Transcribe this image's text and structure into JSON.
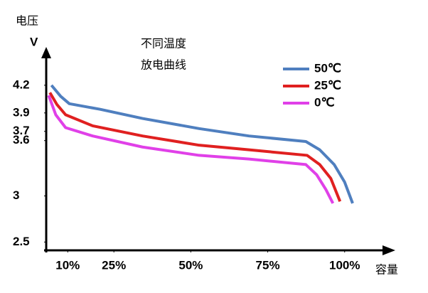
{
  "chart_data": {
    "type": "line",
    "y_label_top": "电压",
    "y_label": "V",
    "x_label": "容量",
    "annotation": [
      "不同温度",
      "放电曲线"
    ],
    "xlim": [
      3,
      113
    ],
    "ylim": [
      2.41,
      4.6
    ],
    "xticks": [
      {
        "value": 10,
        "label": "10%"
      },
      {
        "value": 25,
        "label": "25%"
      },
      {
        "value": 50,
        "label": "50%"
      },
      {
        "value": 75,
        "label": "75%"
      },
      {
        "value": 100,
        "label": "100%"
      }
    ],
    "yticks": [
      2.5,
      3.0,
      3.6,
      3.7,
      3.9,
      4.2
    ],
    "grid": false,
    "legend": "upper right",
    "series": [
      {
        "name": "50℃",
        "color": "#4f7fbf",
        "x": [
          4.7,
          7.7,
          10.5,
          20.4,
          34.3,
          52.7,
          68.9,
          87.4,
          91.9,
          96.6,
          100,
          102.6
        ],
        "values": [
          4.2,
          4.08,
          4.0,
          3.94,
          3.84,
          3.73,
          3.65,
          3.59,
          3.5,
          3.34,
          3.15,
          2.92
        ]
      },
      {
        "name": "25℃",
        "color": "#e02020",
        "x": [
          4.2,
          6.5,
          9.3,
          18.1,
          34.3,
          52.7,
          68.9,
          87.8,
          91.9,
          95.5,
          98.5
        ],
        "values": [
          4.12,
          3.99,
          3.88,
          3.76,
          3.65,
          3.55,
          3.5,
          3.44,
          3.34,
          3.19,
          2.94
        ]
      },
      {
        "name": "0℃",
        "color": "#e040e8",
        "x": [
          3.8,
          6.1,
          9.3,
          18.1,
          34.3,
          52.7,
          68.9,
          87.4,
          90.9,
          93.9,
          96.2
        ],
        "values": [
          4.09,
          3.88,
          3.74,
          3.65,
          3.53,
          3.44,
          3.4,
          3.34,
          3.23,
          3.07,
          2.92
        ]
      }
    ]
  }
}
